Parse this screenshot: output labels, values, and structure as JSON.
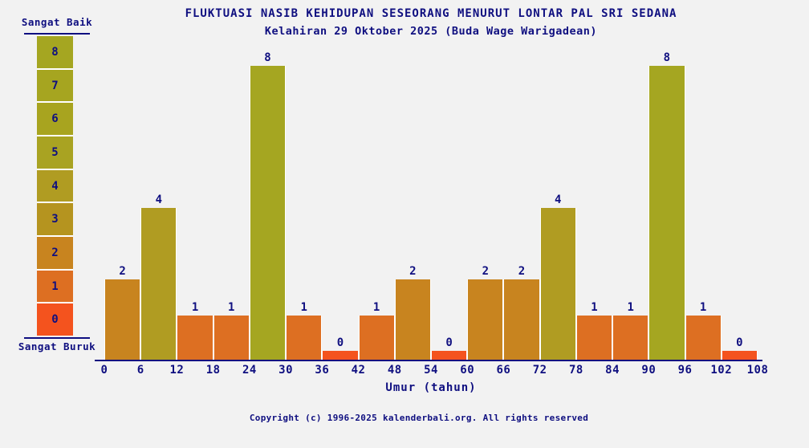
{
  "page": {
    "background": "#f2f2f2",
    "ink_color": "#0f0f80"
  },
  "header": {
    "title": "FLUKTUASI NASIB KEHIDUPAN SESEORANG MENURUT LONTAR PAL SRI SEDANA",
    "subtitle": "Kelahiran 29 Oktober 2025 (Buda Wage Warigadean)"
  },
  "legend": {
    "position": "left",
    "top_label": "Sangat Baik",
    "bottom_label": "Sangat Buruk",
    "levels": [
      {
        "value": "8",
        "color": "#a5a621"
      },
      {
        "value": "7",
        "color": "#a6a520"
      },
      {
        "value": "6",
        "color": "#a8a41f"
      },
      {
        "value": "5",
        "color": "#a9a322"
      },
      {
        "value": "4",
        "color": "#b09c22"
      },
      {
        "value": "3",
        "color": "#b5941f"
      },
      {
        "value": "2",
        "color": "#c8841f"
      },
      {
        "value": "1",
        "color": "#dd6f22"
      },
      {
        "value": "0",
        "color": "#f4531e"
      }
    ]
  },
  "chart_data": {
    "type": "bar",
    "title": "FLUKTUASI NASIB KEHIDUPAN SESEORANG MENURUT LONTAR PAL SRI SEDANA",
    "subtitle": "Kelahiran 29 Oktober 2025 (Buda Wage Warigadean)",
    "xlabel": "Umur (tahun)",
    "ylabel": "",
    "ylim": [
      0,
      8
    ],
    "grid": false,
    "legend_position": "left",
    "x_ticks": [
      0,
      6,
      12,
      18,
      24,
      30,
      36,
      42,
      48,
      54,
      60,
      66,
      72,
      78,
      84,
      90,
      96,
      102,
      108
    ],
    "categories": [
      "0-6",
      "6-12",
      "12-18",
      "18-24",
      "24-30",
      "30-36",
      "36-42",
      "42-48",
      "48-54",
      "54-60",
      "60-66",
      "66-72",
      "72-78",
      "78-84",
      "84-90",
      "90-96",
      "96-102",
      "102-108"
    ],
    "values": [
      2,
      4,
      1,
      1,
      8,
      1,
      0,
      1,
      2,
      0,
      2,
      2,
      4,
      1,
      1,
      8,
      1,
      0
    ],
    "value_colors": {
      "0": "#f4531e",
      "1": "#dd6f22",
      "2": "#c8841f",
      "3": "#b5941f",
      "4": "#b09c22",
      "5": "#a9a322",
      "6": "#a8a41f",
      "7": "#a6a520",
      "8": "#a5a621"
    }
  },
  "footer": {
    "copyright": "Copyright (c) 1996-2025 kalenderbali.org. All rights reserved"
  }
}
